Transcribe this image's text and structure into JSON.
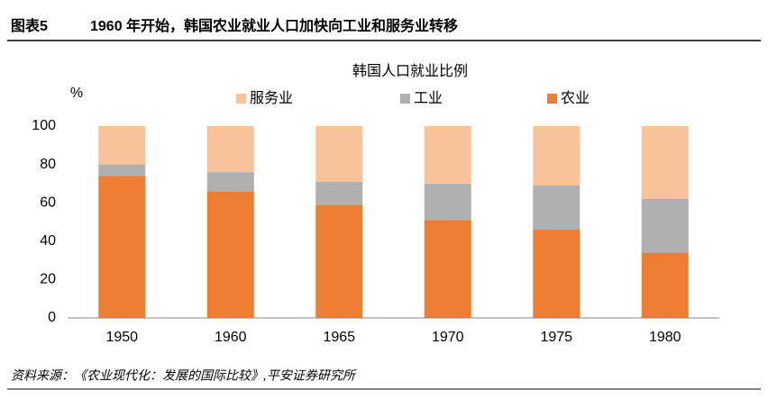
{
  "header": {
    "label": "图表5",
    "title": "1960 年开始，韩国农业就业人口加快向工业和服务业转移"
  },
  "chart_data": {
    "type": "stacked_bar",
    "title": "韩国人口就业比例",
    "y_unit": "%",
    "categories": [
      "1950",
      "1960",
      "1965",
      "1970",
      "1975",
      "1980"
    ],
    "series": [
      {
        "name": "农业",
        "color": "#ed7d31",
        "values": [
          74,
          66,
          59,
          51,
          46,
          34
        ]
      },
      {
        "name": "工业",
        "color": "#b0b0b0",
        "values": [
          6,
          10,
          12,
          19,
          23,
          28
        ]
      },
      {
        "name": "服务业",
        "color": "#f8c29a",
        "values": [
          20,
          24,
          29,
          30,
          31,
          38
        ]
      }
    ],
    "ylim": [
      0,
      100
    ],
    "yticks": [
      0,
      20,
      40,
      60,
      80,
      100
    ],
    "grid": false
  },
  "source": "资料来源：《农业现代化：发展的国际比较》,平安证券研究所"
}
